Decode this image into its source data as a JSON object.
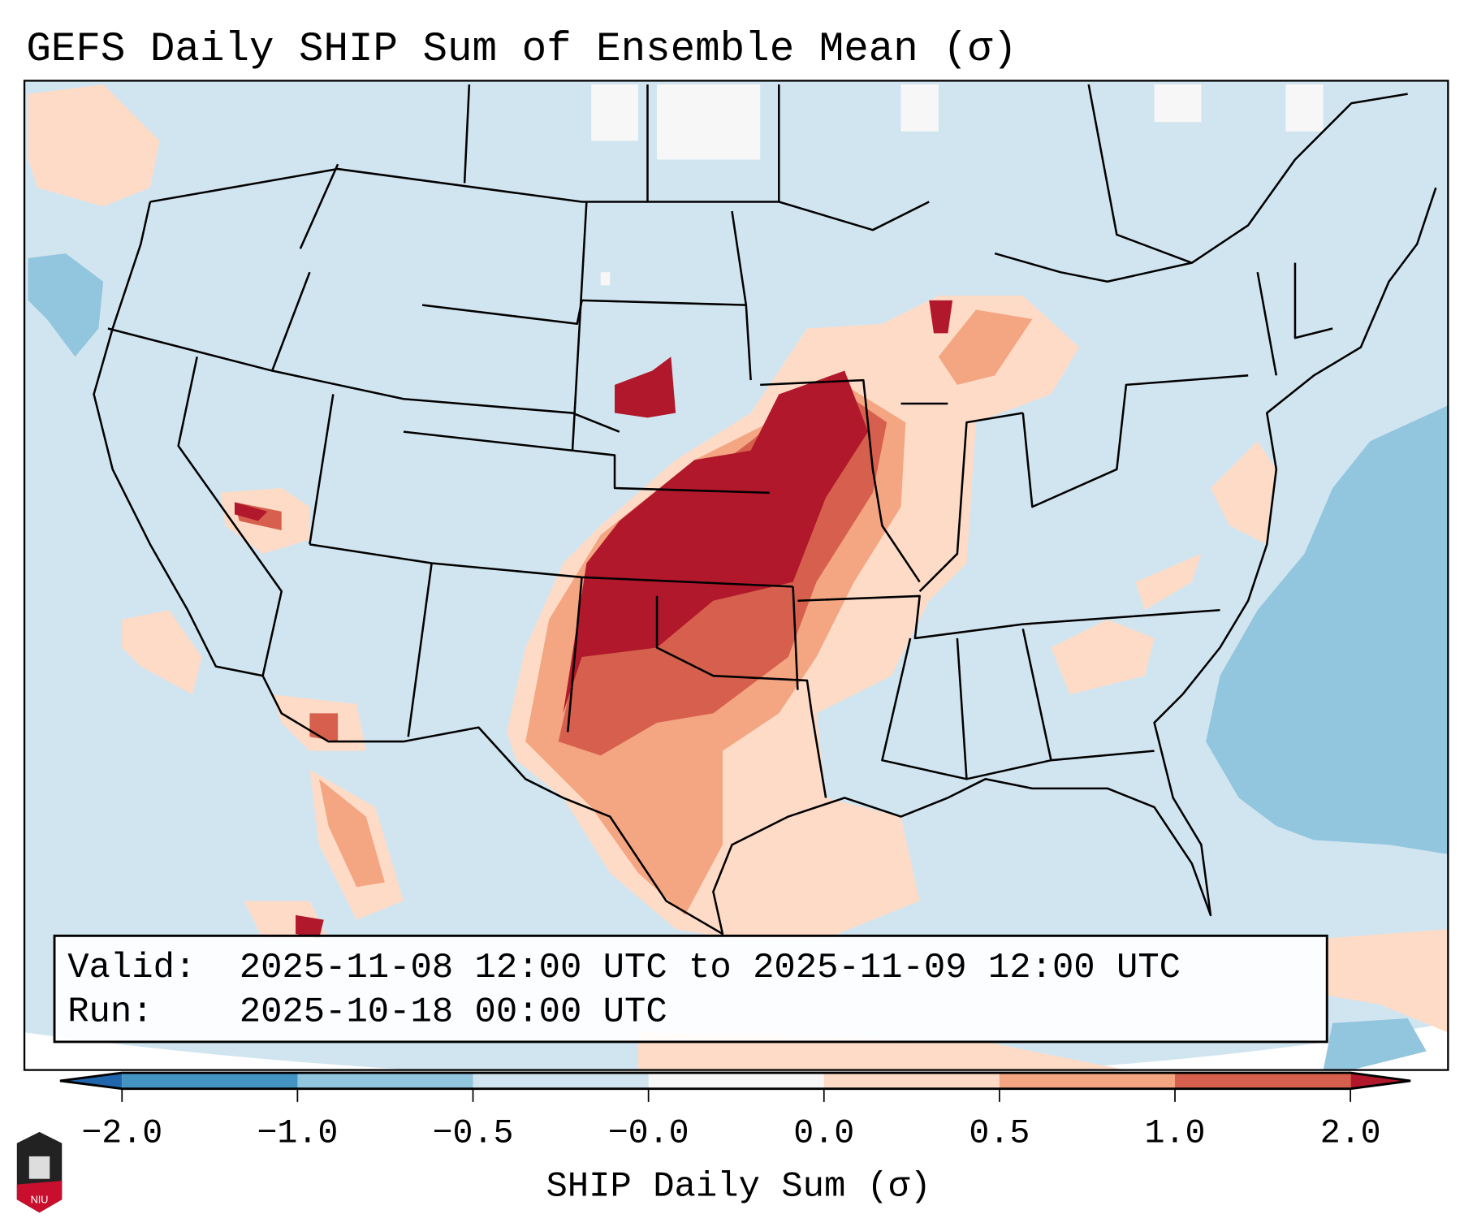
{
  "chart_data": {
    "type": "heatmap",
    "title": "GEFS Daily SHIP Sum of Ensemble Mean (σ)",
    "xlabel": "SHIP Daily Sum (σ)",
    "colorbar": {
      "tick_labels": [
        "−2.0",
        "−1.0",
        "−0.5",
        "−0.0",
        "0.0",
        "0.5",
        "1.0",
        "2.0"
      ],
      "bins": [
        {
          "from": -2.0,
          "to": -1.0,
          "color": "#4393c3"
        },
        {
          "from": -1.0,
          "to": -0.5,
          "color": "#92c5de"
        },
        {
          "from": -0.5,
          "to": -0.0,
          "color": "#d1e5f0"
        },
        {
          "from": -0.0,
          "to": 0.0,
          "color": "#f7f7f7"
        },
        {
          "from": 0.0,
          "to": 0.5,
          "color": "#fddbc7"
        },
        {
          "from": 0.5,
          "to": 1.0,
          "color": "#f4a582"
        },
        {
          "from": 1.0,
          "to": 2.0,
          "color": "#d6604d"
        }
      ],
      "under_color": "#2166ac",
      "over_color": "#b2182b",
      "extend": "both"
    },
    "info": {
      "valid_label": "Valid:",
      "valid_value": "2025-11-08 12:00 UTC to 2025-11-09 12:00 UTC",
      "run_label": "Run:",
      "run_value": "2025-10-18 00:00 UTC"
    },
    "logo_text": "NIU"
  }
}
